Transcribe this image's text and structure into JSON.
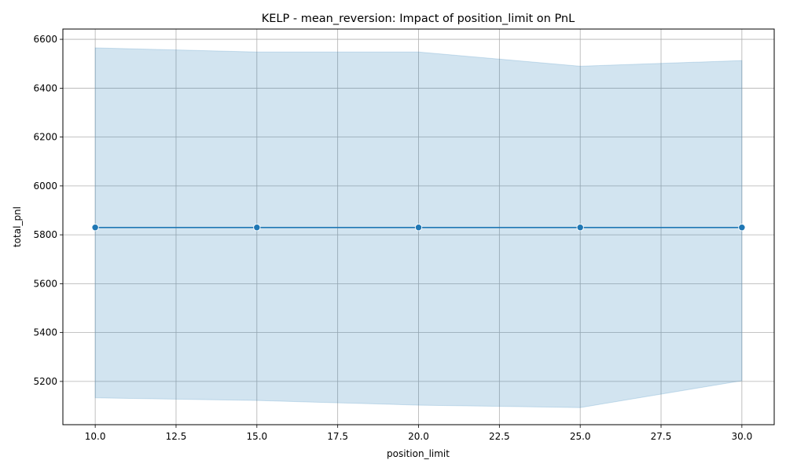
{
  "chart_data": {
    "type": "line",
    "title": "KELP - mean_reversion: Impact of position_limit on PnL",
    "xlabel": "position_limit",
    "ylabel": "total_pnl",
    "x": [
      10,
      15,
      20,
      25,
      30
    ],
    "series": [
      {
        "values": [
          5830,
          5830,
          5830,
          5830,
          5830
        ],
        "band_upper": [
          6565,
          6548,
          6548,
          6490,
          6513
        ],
        "band_lower": [
          5133,
          5122,
          5103,
          5093,
          5203
        ],
        "color": "#1f77b4",
        "marker": "circle"
      }
    ],
    "xlim": [
      9,
      31
    ],
    "ylim": [
      5023,
      6642
    ],
    "xticks": [
      10.0,
      12.5,
      15.0,
      17.5,
      20.0,
      22.5,
      25.0,
      27.5,
      30.0
    ],
    "xtick_labels": [
      "10.0",
      "12.5",
      "15.0",
      "17.5",
      "20.0",
      "22.5",
      "25.0",
      "27.5",
      "30.0"
    ],
    "yticks": [
      5200,
      5400,
      5600,
      5800,
      6000,
      6200,
      6400,
      6600
    ],
    "ytick_labels": [
      "5200",
      "5400",
      "5600",
      "5800",
      "6000",
      "6200",
      "6400",
      "6600"
    ],
    "grid": true,
    "legend": false
  }
}
